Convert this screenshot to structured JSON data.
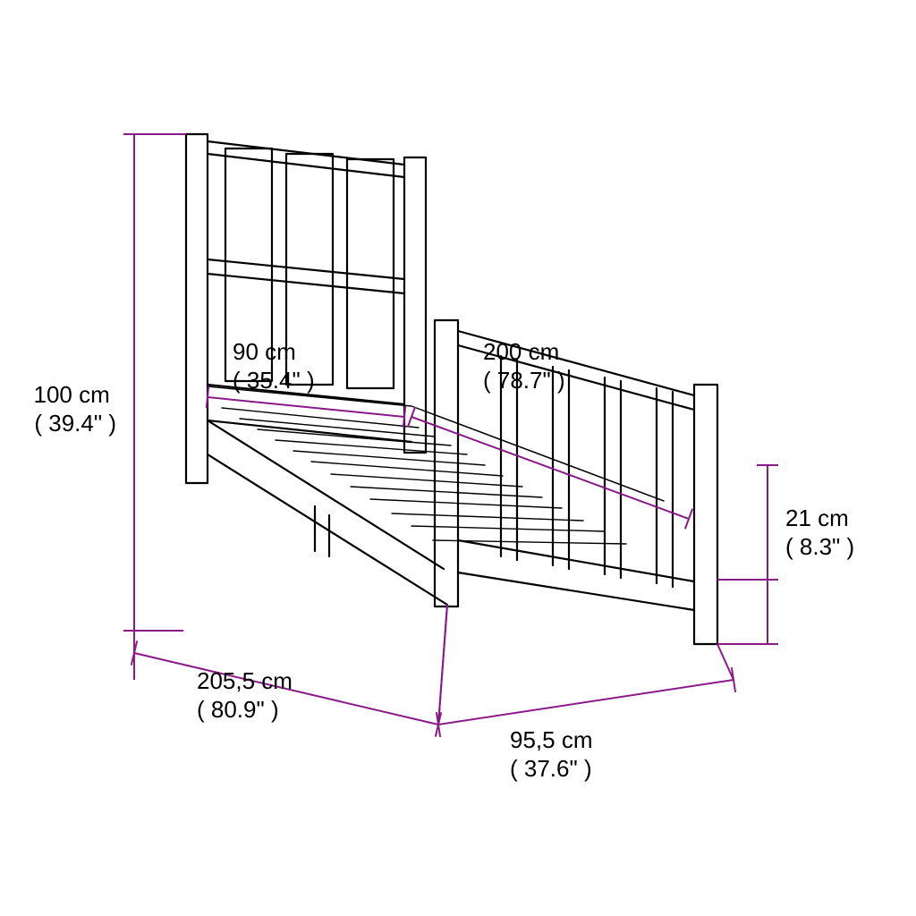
{
  "diagram": {
    "type": "technical-dimension-drawing",
    "background_color": "#ffffff",
    "line_color": "#000000",
    "dimension_color": "#8b1a89",
    "label_fontsize_pt": 20,
    "dimensions": {
      "height": {
        "cm": "100 cm",
        "in": "39.4\""
      },
      "inner_width": {
        "cm": "90 cm",
        "in": "35.4\""
      },
      "inner_length": {
        "cm": "200 cm",
        "in": "78.7\""
      },
      "outer_length": {
        "cm": "205,5 cm",
        "in": "80.9\""
      },
      "outer_width": {
        "cm": "95,5 cm",
        "in": "37.6\""
      },
      "clearance": {
        "cm": "21 cm",
        "in": "8.3\""
      }
    }
  }
}
